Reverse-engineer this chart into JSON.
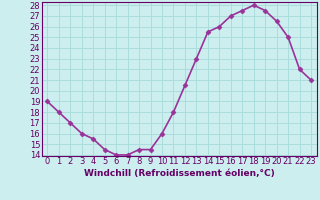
{
  "x": [
    0,
    1,
    2,
    3,
    4,
    5,
    6,
    7,
    8,
    9,
    10,
    11,
    12,
    13,
    14,
    15,
    16,
    17,
    18,
    19,
    20,
    21,
    22,
    23
  ],
  "y": [
    19.0,
    18.0,
    17.0,
    16.0,
    15.5,
    14.5,
    14.0,
    14.0,
    14.5,
    14.5,
    16.0,
    18.0,
    20.5,
    23.0,
    25.5,
    26.0,
    27.0,
    27.5,
    28.0,
    27.5,
    26.5,
    25.0,
    22.0,
    21.0
  ],
  "xlabel": "Windchill (Refroidissement éolien,°C)",
  "ylim": [
    14,
    28
  ],
  "xlim": [
    -0.5,
    23.5
  ],
  "yticks": [
    14,
    15,
    16,
    17,
    18,
    19,
    20,
    21,
    22,
    23,
    24,
    25,
    26,
    27,
    28
  ],
  "xticks": [
    0,
    1,
    2,
    3,
    4,
    5,
    6,
    7,
    8,
    9,
    10,
    11,
    12,
    13,
    14,
    15,
    16,
    17,
    18,
    19,
    20,
    21,
    22,
    23
  ],
  "line_color": "#993399",
  "marker_color": "#993399",
  "bg_color": "#cceeee",
  "grid_color": "#aadddd",
  "spine_color": "#660066",
  "tick_label_color": "#660066",
  "xlabel_color": "#660066",
  "xlabel_fontsize": 6.5,
  "tick_fontsize": 6.0,
  "linewidth": 1.2,
  "markersize": 2.5
}
